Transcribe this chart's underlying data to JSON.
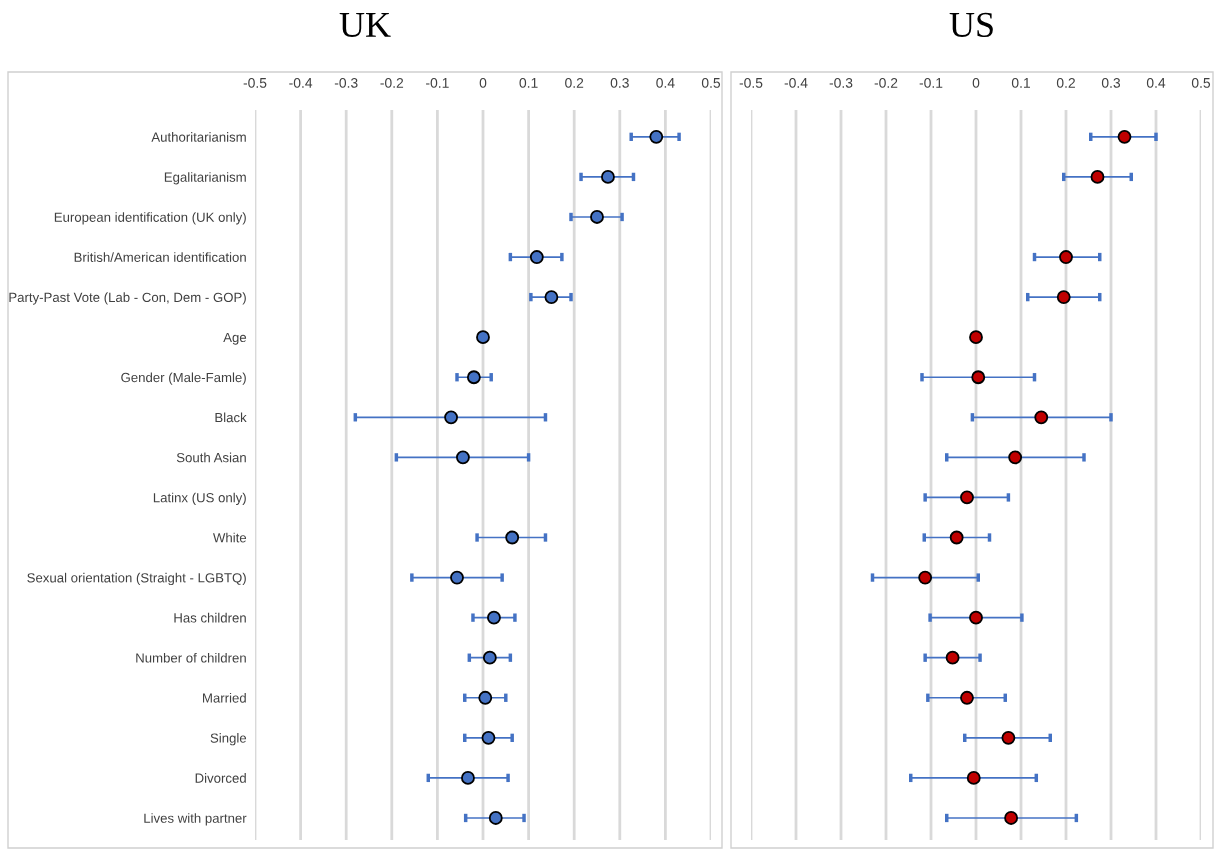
{
  "chart_data": [
    {
      "type": "scatter",
      "title": "UK",
      "orientation": "horizontal",
      "marker": "circle",
      "grid": "x",
      "categories": [
        "Authoritarianism",
        "Egalitarianism",
        "European identification (UK only)",
        "British/American identification",
        "Party-Past Vote (Lab - Con, Dem - GOP)",
        "Age",
        "Gender (Male-Famle)",
        "Black",
        "South Asian",
        "Latinx (US only)",
        "White",
        "Sexual orientation (Straight - LGBTQ)",
        "Has children",
        "Number of children",
        "Married",
        "Single",
        "Divorced",
        "Lives with partner"
      ],
      "xlim": [
        -0.5,
        0.5
      ],
      "xticks": [
        -0.5,
        -0.4,
        -0.3,
        -0.2,
        -0.1,
        0,
        0.1,
        0.2,
        0.3,
        0.4,
        0.5
      ],
      "color": "#4472c4",
      "values": [
        0.38,
        0.274,
        0.25,
        0.118,
        0.15,
        0,
        -0.02,
        -0.07,
        -0.044,
        null,
        0.064,
        -0.057,
        0.024,
        0.015,
        0.005,
        0.012,
        -0.033,
        0.028
      ],
      "errors": [
        [
          0.325,
          0.43
        ],
        [
          0.215,
          0.33
        ],
        [
          0.193,
          0.305
        ],
        [
          0.06,
          0.173
        ],
        [
          0.105,
          0.193
        ],
        null,
        [
          -0.057,
          0.018
        ],
        [
          -0.28,
          0.137
        ],
        [
          -0.19,
          0.1
        ],
        null,
        [
          -0.013,
          0.137
        ],
        [
          -0.156,
          0.042
        ],
        [
          -0.022,
          0.07
        ],
        [
          -0.03,
          0.06
        ],
        [
          -0.04,
          0.05
        ],
        [
          -0.04,
          0.064
        ],
        [
          -0.12,
          0.055
        ],
        [
          -0.038,
          0.09
        ]
      ]
    },
    {
      "type": "scatter",
      "title": "US",
      "orientation": "horizontal",
      "marker": "circle",
      "grid": "x",
      "tick_labels": "x",
      "categories": [
        null,
        null,
        null,
        null,
        null,
        null,
        null,
        null,
        null,
        null,
        null,
        null,
        null,
        null,
        null,
        null,
        null,
        null
      ],
      "xlim": [
        -0.5,
        0.5
      ],
      "xticks": [
        -0.5,
        -0.4,
        -0.3,
        -0.2,
        -0.1,
        0,
        0.1,
        0.2,
        0.3,
        0.4,
        0.5
      ],
      "color": "#c00000",
      "values": [
        0.33,
        0.27,
        null,
        0.2,
        0.195,
        0,
        0.005,
        0.145,
        0.087,
        -0.02,
        -0.043,
        -0.113,
        0,
        -0.052,
        -0.02,
        0.072,
        -0.005,
        0.078
      ],
      "errors": [
        [
          0.255,
          0.4
        ],
        [
          0.195,
          0.345
        ],
        null,
        [
          0.13,
          0.275
        ],
        [
          0.115,
          0.275
        ],
        null,
        [
          -0.12,
          0.13
        ],
        [
          -0.008,
          0.3
        ],
        [
          -0.065,
          0.24
        ],
        [
          -0.113,
          0.072
        ],
        [
          -0.115,
          0.03
        ],
        [
          -0.23,
          0.005
        ],
        [
          -0.102,
          0.102
        ],
        [
          -0.113,
          0.009
        ],
        [
          -0.107,
          0.065
        ],
        [
          -0.025,
          0.165
        ],
        [
          -0.145,
          0.134
        ],
        [
          -0.065,
          0.223
        ]
      ]
    }
  ]
}
